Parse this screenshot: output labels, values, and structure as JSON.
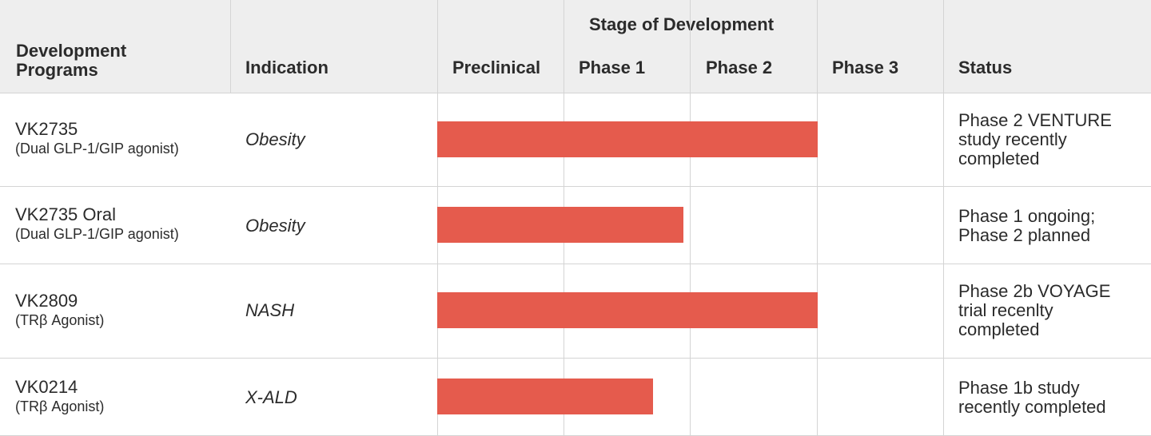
{
  "header": {
    "programs": "Development\nPrograms",
    "indication": "Indication",
    "stage_group": "Stage of Development",
    "stages": [
      "Preclinical",
      "Phase 1",
      "Phase 2",
      "Phase 3"
    ],
    "status": "Status"
  },
  "rows": [
    {
      "name": "VK2735",
      "subtitle": "(Dual GLP-1/GIP agonist)",
      "indication": "Obesity",
      "status": "Phase 2 VENTURE\nstudy recently\ncompleted"
    },
    {
      "name": "VK2735 Oral",
      "subtitle": "(Dual GLP-1/GIP agonist)",
      "indication": "Obesity",
      "status": "Phase 1 ongoing;\nPhase 2 planned"
    },
    {
      "name": "VK2809",
      "subtitle": "(TRβ Agonist)",
      "indication": "NASH",
      "status": "Phase 2b VOYAGE\ntrial recenlty\ncompleted"
    },
    {
      "name": "VK0214",
      "subtitle": "(TRβ Agonist)",
      "indication": "X-ALD",
      "status": "Phase 1b study\nrecently completed"
    }
  ],
  "colors": {
    "bar": "#e55b4d",
    "header_bg": "#eeeeee",
    "grid": "#d4d4d4"
  },
  "chart_data": {
    "type": "bar",
    "orientation": "horizontal",
    "x_axis": "Stage of Development",
    "x_scale_unit": "stage columns (0 = start of Preclinical, 4 = end of Phase 3)",
    "xlim": [
      0,
      4
    ],
    "categories": [
      "VK2735",
      "VK2735 Oral",
      "VK2809",
      "VK0214"
    ],
    "values": [
      3.0,
      1.94,
      3.0,
      1.7
    ],
    "bar_color": "#e55b4d",
    "grid": true
  }
}
